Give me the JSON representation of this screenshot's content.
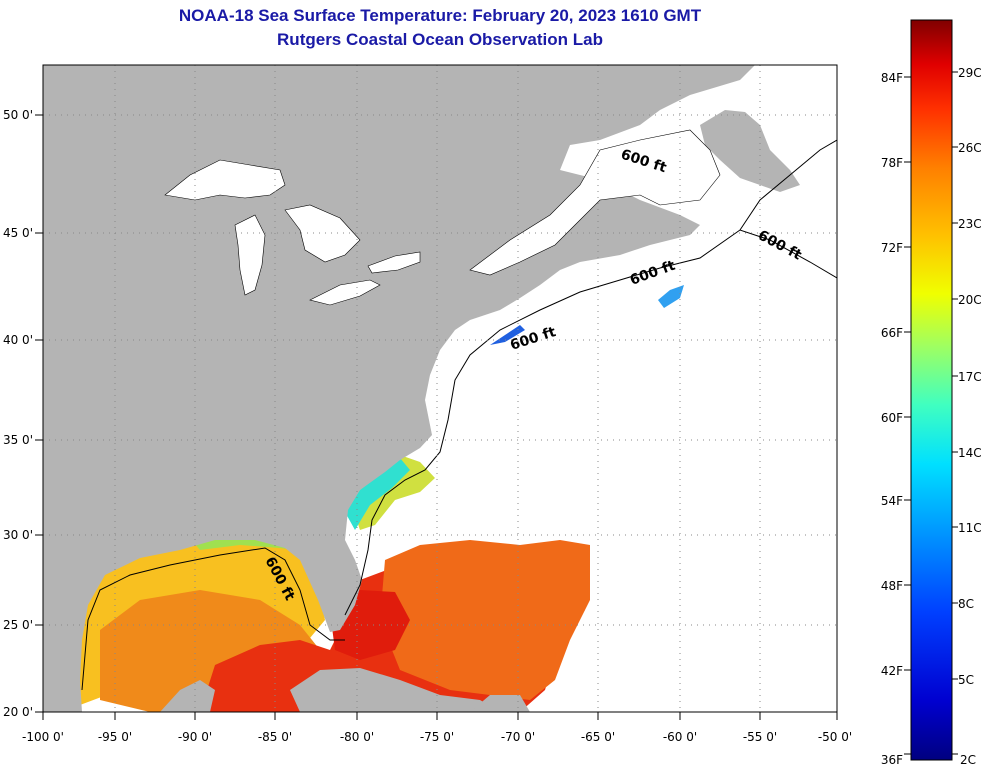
{
  "header": {
    "title": "NOAA-18 Sea Surface Temperature:  February 20, 2023 1610 GMT",
    "subtitle": "Rutgers Coastal Ocean Observation Lab",
    "title_color": "#1a1aa6"
  },
  "map": {
    "lon_range": [
      -100,
      -50
    ],
    "lat_range": [
      20,
      52
    ],
    "lon_ticks": [
      "-100 0'",
      "-95 0'",
      "-90 0'",
      "-85 0'",
      "-80 0'",
      "-75 0'",
      "-70 0'",
      "-65 0'",
      "-60 0'",
      "-55 0'",
      "-50 0'"
    ],
    "lat_ticks": [
      "20 0'",
      "25 0'",
      "30 0'",
      "35 0'",
      "40 0'",
      "45 0'",
      "50 0'"
    ],
    "grid": "dotted",
    "land_color": "#b4b4b4",
    "no_data_color": "#ffffff",
    "isobath_label": "600 ft"
  },
  "colorbar": {
    "fahrenheit_labels": [
      "84F",
      "78F",
      "72F",
      "66F",
      "60F",
      "54F",
      "48F",
      "42F",
      "36F"
    ],
    "celsius_labels": [
      "29C",
      "26C",
      "23C",
      "20C",
      "17C",
      "14C",
      "11C",
      "8C",
      "5C",
      "2C"
    ],
    "colors": [
      "#000080",
      "#0000d0",
      "#0040ff",
      "#0090ff",
      "#00e0ff",
      "#40ffc0",
      "#a0ff60",
      "#f0ff00",
      "#ffc000",
      "#ff8000",
      "#ff3000",
      "#e00000",
      "#800000"
    ]
  }
}
